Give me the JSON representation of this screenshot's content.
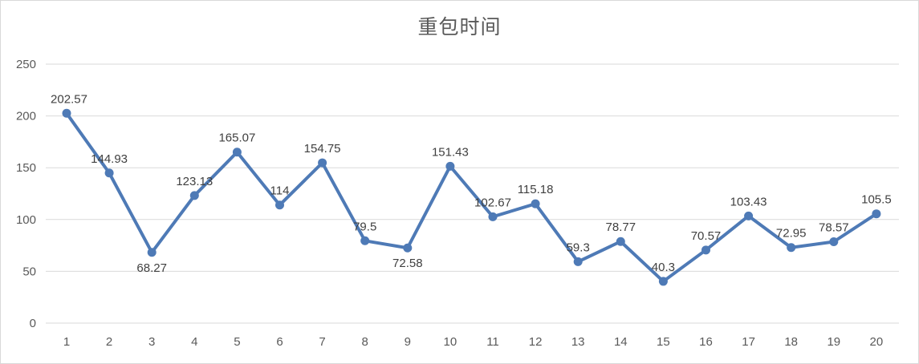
{
  "chart_data": {
    "type": "line",
    "title": "重包时间",
    "xlabel": "",
    "ylabel": "",
    "categories": [
      "1",
      "2",
      "3",
      "4",
      "5",
      "6",
      "7",
      "8",
      "9",
      "10",
      "11",
      "12",
      "13",
      "14",
      "15",
      "16",
      "17",
      "18",
      "19",
      "20"
    ],
    "series": [
      {
        "values": [
          202.57,
          144.93,
          68.27,
          123.13,
          165.07,
          114,
          154.75,
          79.5,
          72.58,
          151.43,
          102.67,
          115.18,
          59.3,
          78.77,
          40.3,
          70.57,
          103.43,
          72.95,
          78.57,
          105.5
        ],
        "data_labels": [
          "202.57",
          "144.93",
          "68.27",
          "123.13",
          "165.07",
          "114",
          "154.75",
          "79.5",
          "72.58",
          "151.43",
          "102.67",
          "115.18",
          "59.3",
          "78.77",
          "40.3",
          "70.57",
          "103.43",
          "72.95",
          "78.57",
          "105.5"
        ],
        "label_positions": [
          "above",
          "above",
          "below",
          "above",
          "above",
          "above",
          "above",
          "above",
          "below",
          "above",
          "above",
          "above",
          "above",
          "above",
          "above",
          "above",
          "above",
          "above",
          "above",
          "above"
        ]
      }
    ],
    "ylim": [
      0,
      250
    ],
    "yticks": [
      0,
      50,
      100,
      150,
      200,
      250
    ],
    "ytick_labels": [
      "0",
      "50",
      "100",
      "150",
      "200",
      "250"
    ],
    "grid": true,
    "legend": "none",
    "colors": {
      "line": "#4e7ab6",
      "gridline": "#d9d9d9",
      "axis_text": "#595959",
      "label_text": "#404040"
    }
  }
}
